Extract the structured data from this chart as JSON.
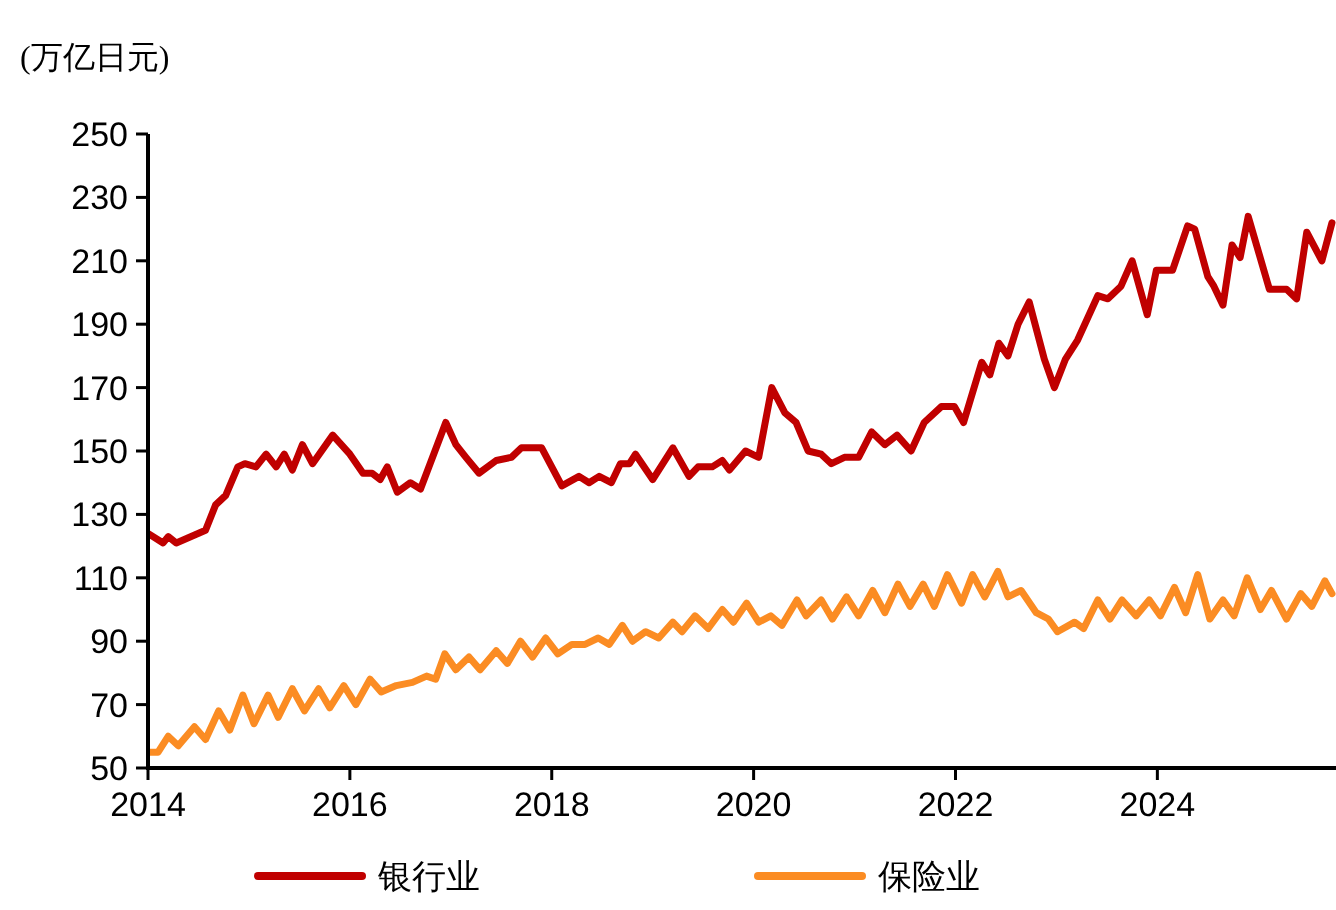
{
  "chart_data": {
    "type": "line",
    "ylabel": "(万亿日元)",
    "xlim": [
      2014,
      2025.75
    ],
    "xticks": [
      2014,
      2016,
      2018,
      2020,
      2022,
      2024
    ],
    "ylim": [
      50,
      250
    ],
    "yticks": [
      50,
      70,
      90,
      110,
      130,
      150,
      170,
      190,
      210,
      230,
      250
    ],
    "grid": false,
    "legend": "bottom",
    "marker": "none",
    "line_style": "solid",
    "series": [
      {
        "name": "银行业",
        "color": "#c00000",
        "x": [
          2014.0,
          2014.15,
          2014.2,
          2014.28,
          2014.57,
          2014.67,
          2014.77,
          2014.89,
          2014.96,
          2015.07,
          2015.17,
          2015.27,
          2015.35,
          2015.43,
          2015.53,
          2015.63,
          2015.83,
          2016.0,
          2016.13,
          2016.22,
          2016.3,
          2016.37,
          2016.47,
          2016.6,
          2016.7,
          2016.95,
          2017.05,
          2017.15,
          2017.28,
          2017.45,
          2017.6,
          2017.7,
          2017.9,
          2018.1,
          2018.27,
          2018.37,
          2018.47,
          2018.59,
          2018.68,
          2018.77,
          2018.83,
          2019.0,
          2019.2,
          2019.36,
          2019.45,
          2019.59,
          2019.69,
          2019.76,
          2019.92,
          2020.05,
          2020.18,
          2020.31,
          2020.42,
          2020.54,
          2020.67,
          2020.77,
          2020.9,
          2021.04,
          2021.17,
          2021.3,
          2021.42,
          2021.56,
          2021.69,
          2021.86,
          2021.99,
          2022.08,
          2022.26,
          2022.34,
          2022.43,
          2022.52,
          2022.62,
          2022.73,
          2022.88,
          2022.98,
          2023.09,
          2023.21,
          2023.41,
          2023.51,
          2023.64,
          2023.75,
          2023.9,
          2023.99,
          2024.15,
          2024.3,
          2024.37,
          2024.5,
          2024.56,
          2024.65,
          2024.74,
          2024.82,
          2024.9,
          2025.11,
          2025.28,
          2025.38,
          2025.48,
          2025.63,
          2025.73
        ],
        "values": [
          124,
          121,
          123,
          121,
          125,
          133,
          136,
          145,
          146,
          145,
          149,
          145,
          149,
          144,
          152,
          146,
          155,
          149,
          143,
          143,
          141,
          145,
          137,
          140,
          138,
          159,
          152,
          148,
          143,
          147,
          148,
          151,
          151,
          139,
          142,
          140,
          142,
          140,
          146,
          146,
          149,
          141,
          151,
          142,
          145,
          145,
          147,
          144,
          150,
          148,
          170,
          162,
          159,
          150,
          149,
          146,
          148,
          148,
          156,
          152,
          155,
          150,
          159,
          164,
          164,
          159,
          178,
          174,
          184,
          180,
          190,
          197,
          179,
          170,
          179,
          185,
          199,
          198,
          202,
          210,
          193,
          207,
          207,
          221,
          220,
          205,
          202,
          196,
          215,
          211,
          224,
          201,
          201,
          198,
          219,
          210,
          222
        ]
      },
      {
        "name": "保险业",
        "color": "#fb8c23",
        "x": [
          2014.0,
          2014.1,
          2014.2,
          2014.3,
          2014.46,
          2014.57,
          2014.7,
          2014.81,
          2014.94,
          2015.05,
          2015.19,
          2015.29,
          2015.43,
          2015.55,
          2015.69,
          2015.8,
          2015.94,
          2016.06,
          2016.2,
          2016.31,
          2016.46,
          2016.62,
          2016.76,
          2016.85,
          2016.94,
          2017.05,
          2017.18,
          2017.29,
          2017.45,
          2017.56,
          2017.69,
          2017.81,
          2017.94,
          2018.06,
          2018.2,
          2018.33,
          2018.46,
          2018.57,
          2018.7,
          2018.8,
          2018.93,
          2019.06,
          2019.2,
          2019.29,
          2019.42,
          2019.55,
          2019.69,
          2019.8,
          2019.93,
          2020.05,
          2020.17,
          2020.28,
          2020.43,
          2020.52,
          2020.67,
          2020.78,
          2020.92,
          2021.04,
          2021.18,
          2021.3,
          2021.43,
          2021.55,
          2021.68,
          2021.79,
          2021.92,
          2022.06,
          2022.17,
          2022.29,
          2022.42,
          2022.52,
          2022.65,
          2022.8,
          2022.92,
          2023.01,
          2023.18,
          2023.27,
          2023.41,
          2023.53,
          2023.65,
          2023.79,
          2023.92,
          2024.03,
          2024.17,
          2024.28,
          2024.4,
          2024.52,
          2024.65,
          2024.76,
          2024.89,
          2025.02,
          2025.13,
          2025.28,
          2025.42,
          2025.53,
          2025.66,
          2025.73
        ],
        "values": [
          55,
          55,
          60,
          57,
          63,
          59,
          68,
          62,
          73,
          64,
          73,
          66,
          75,
          68,
          75,
          69,
          76,
          70,
          78,
          74,
          76,
          77,
          79,
          78,
          86,
          81,
          85,
          81,
          87,
          83,
          90,
          85,
          91,
          86,
          89,
          89,
          91,
          89,
          95,
          90,
          93,
          91,
          96,
          93,
          98,
          94,
          100,
          96,
          102,
          96,
          98,
          95,
          103,
          98,
          103,
          97,
          104,
          98,
          106,
          99,
          108,
          101,
          108,
          101,
          111,
          102,
          111,
          104,
          112,
          104,
          106,
          99,
          97,
          93,
          96,
          94,
          103,
          97,
          103,
          98,
          103,
          98,
          107,
          99,
          111,
          97,
          103,
          98,
          110,
          100,
          106,
          97,
          105,
          101,
          109,
          105
        ]
      }
    ]
  }
}
